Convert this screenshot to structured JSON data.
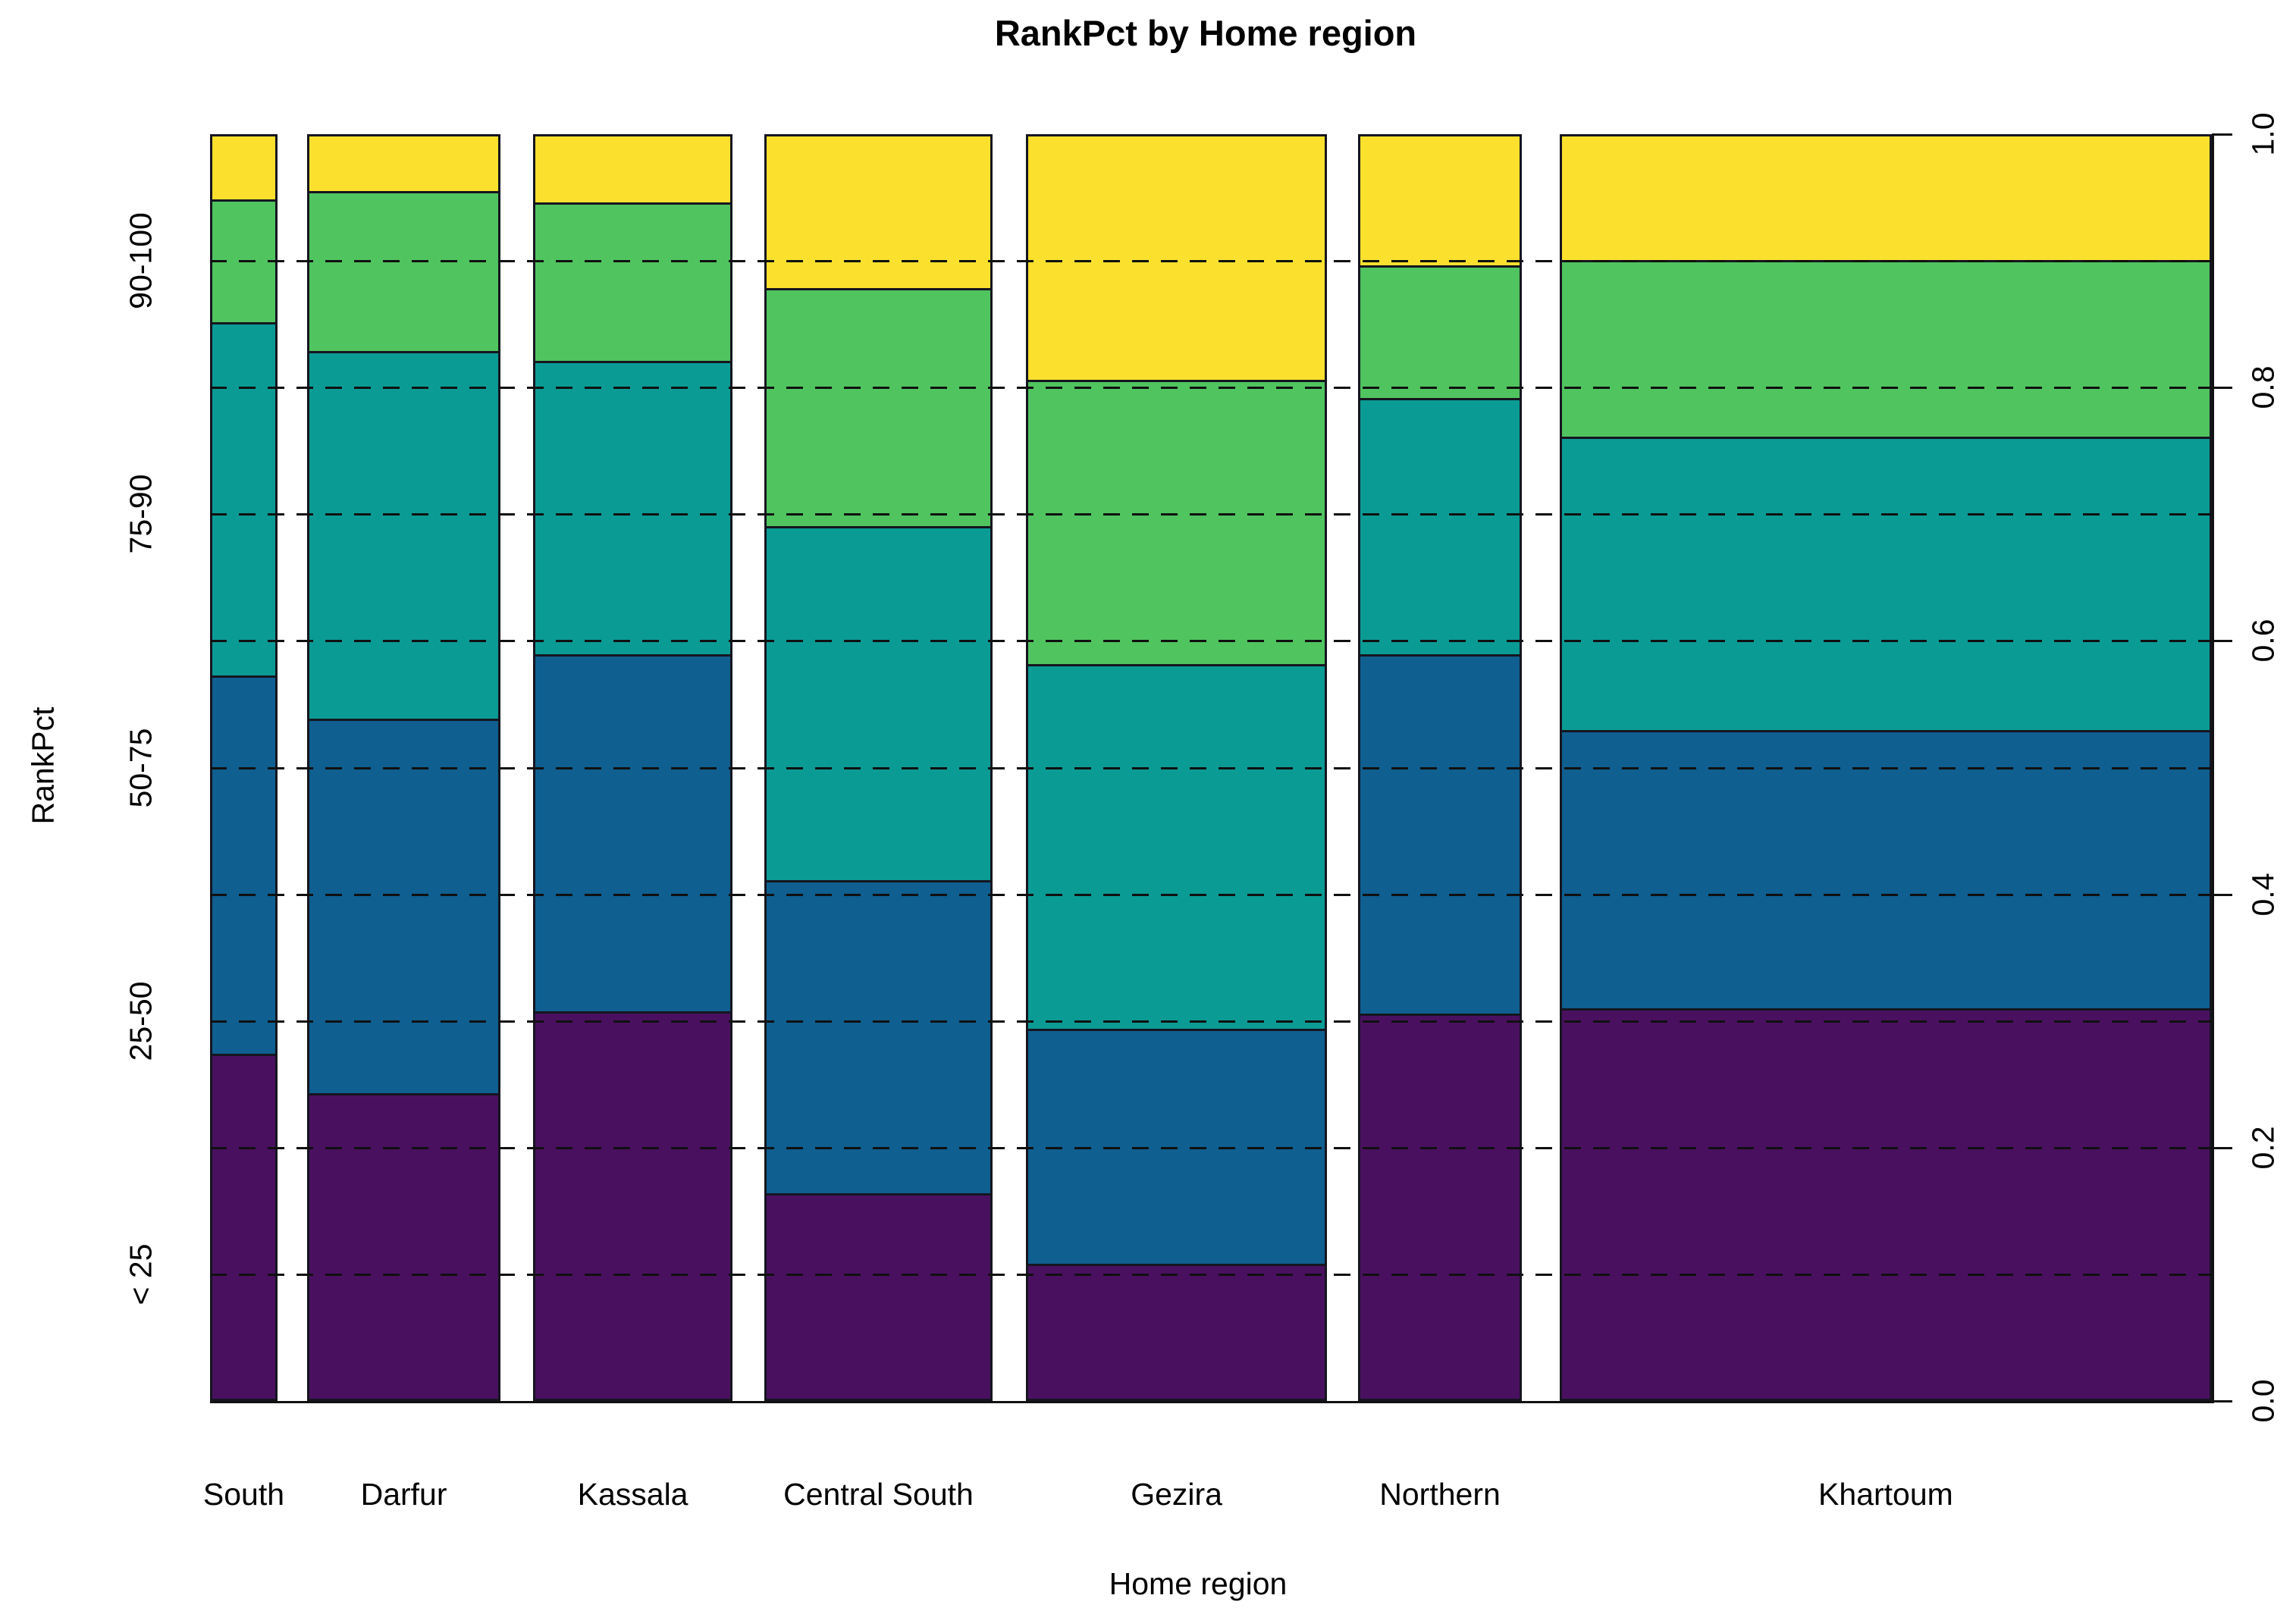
{
  "title": "RankPct by Home region",
  "x_axis": {
    "label": "Home region"
  },
  "y_axis": {
    "label": "RankPct"
  },
  "right_axis": {
    "tick_labels": [
      "0.0",
      "0.2",
      "0.4",
      "0.6",
      "0.8",
      "1.0"
    ],
    "tick_values": [
      0.0,
      0.2,
      0.4,
      0.6,
      0.8,
      1.0
    ]
  },
  "chart_data": {
    "type": "bar",
    "subtype": "spineplot-mosaic-100pct-stacked",
    "title": "RankPct by Home region",
    "xlabel": "Home region",
    "ylabel": "RankPct",
    "ylim": [
      0.0,
      1.0
    ],
    "grid": "dashed horizontal lines every 0.1",
    "legend_position": "none",
    "categories": [
      "South",
      "Darfur",
      "Kassala",
      "Central South",
      "Gezira",
      "Northern",
      "Khartoum"
    ],
    "bar_width_fractions": [
      0.0337,
      0.0966,
      0.0996,
      0.114,
      0.1504,
      0.0818,
      0.3258
    ],
    "bar_left_fractions": [
      0.0,
      0.0485,
      0.1614,
      0.2769,
      0.4076,
      0.5735,
      0.6742
    ],
    "series": [
      {
        "name": "< 25",
        "color": "#4A1060",
        "label_position": 0.1,
        "values": [
          0.273,
          0.242,
          0.307,
          0.163,
          0.107,
          0.305,
          0.309
        ]
      },
      {
        "name": "25-50",
        "color": "#0F5F90",
        "label_position": 0.3,
        "values": [
          0.3,
          0.297,
          0.283,
          0.248,
          0.186,
          0.285,
          0.221
        ]
      },
      {
        "name": "50-75",
        "color": "#0B9B95",
        "label_position": 0.5,
        "values": [
          0.28,
          0.291,
          0.232,
          0.28,
          0.289,
          0.203,
          0.232
        ]
      },
      {
        "name": "75-90",
        "color": "#50C45F",
        "label_position": 0.7,
        "values": [
          0.097,
          0.127,
          0.126,
          0.189,
          0.225,
          0.105,
          0.14
        ]
      },
      {
        "name": "90-100",
        "color": "#FBE12E",
        "label_position": 0.9,
        "values": [
          0.05,
          0.043,
          0.052,
          0.12,
          0.193,
          0.102,
          0.098
        ]
      }
    ],
    "gridline_values": [
      0.1,
      0.2,
      0.3,
      0.4,
      0.5,
      0.6,
      0.7,
      0.8,
      0.9
    ]
  },
  "colors": {
    "background": "#ffffff",
    "segment_border": "#15151f",
    "text": "#000000"
  }
}
